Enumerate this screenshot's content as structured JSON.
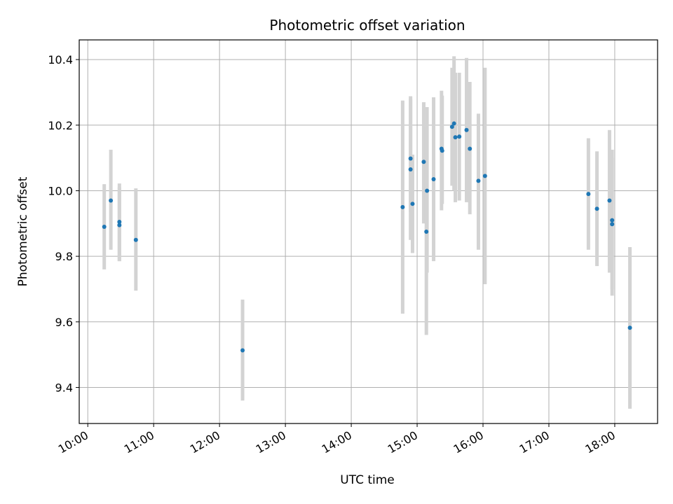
{
  "chart_data": {
    "type": "scatter",
    "title": "Photometric offset variation",
    "xlabel": "UTC time",
    "ylabel": "Photometric offset",
    "x_unit": "hour",
    "xlim": [
      9.87,
      18.65
    ],
    "ylim": [
      9.29,
      10.46
    ],
    "x_ticks": [
      10,
      11,
      12,
      13,
      14,
      15,
      16,
      17,
      18
    ],
    "x_tick_labels": [
      "10:00",
      "11:00",
      "12:00",
      "13:00",
      "14:00",
      "15:00",
      "16:00",
      "17:00",
      "18:00"
    ],
    "y_ticks": [
      9.4,
      9.6,
      9.8,
      10.0,
      10.2,
      10.4
    ],
    "y_tick_labels": [
      "9.4",
      "9.6",
      "9.8",
      "10.0",
      "10.2",
      "10.4"
    ],
    "grid": true,
    "marker_color": "#1f77b4",
    "errorbar_color": "#d3d3d3",
    "points": [
      {
        "x": 10.25,
        "y": 9.89,
        "lo": 9.76,
        "hi": 10.02
      },
      {
        "x": 10.35,
        "y": 9.97,
        "lo": 9.82,
        "hi": 10.125
      },
      {
        "x": 10.48,
        "y": 9.905,
        "lo": 9.785,
        "hi": 10.022
      },
      {
        "x": 10.48,
        "y": 9.895,
        "lo": 9.785,
        "hi": 10.01
      },
      {
        "x": 10.73,
        "y": 9.85,
        "lo": 9.695,
        "hi": 10.007
      },
      {
        "x": 12.35,
        "y": 9.513,
        "lo": 9.36,
        "hi": 9.668
      },
      {
        "x": 14.78,
        "y": 9.95,
        "lo": 9.625,
        "hi": 10.275
      },
      {
        "x": 14.9,
        "y": 10.098,
        "lo": 9.935,
        "hi": 10.288
      },
      {
        "x": 14.9,
        "y": 10.065,
        "lo": 9.85,
        "hi": 10.28
      },
      {
        "x": 14.93,
        "y": 9.96,
        "lo": 9.81,
        "hi": 10.11
      },
      {
        "x": 15.1,
        "y": 10.088,
        "lo": 9.9,
        "hi": 10.27
      },
      {
        "x": 15.14,
        "y": 9.875,
        "lo": 9.56,
        "hi": 10.195
      },
      {
        "x": 15.15,
        "y": 10.0,
        "lo": 9.75,
        "hi": 10.255
      },
      {
        "x": 15.25,
        "y": 10.035,
        "lo": 9.785,
        "hi": 10.285
      },
      {
        "x": 15.37,
        "y": 10.128,
        "lo": 9.94,
        "hi": 10.305
      },
      {
        "x": 15.38,
        "y": 10.122,
        "lo": 9.96,
        "hi": 10.29
      },
      {
        "x": 15.53,
        "y": 10.195,
        "lo": 10.015,
        "hi": 10.375
      },
      {
        "x": 15.56,
        "y": 10.205,
        "lo": 10.0,
        "hi": 10.41
      },
      {
        "x": 15.58,
        "y": 10.163,
        "lo": 9.965,
        "hi": 10.36
      },
      {
        "x": 15.64,
        "y": 10.165,
        "lo": 9.97,
        "hi": 10.36
      },
      {
        "x": 15.75,
        "y": 10.185,
        "lo": 9.965,
        "hi": 10.405
      },
      {
        "x": 15.8,
        "y": 10.128,
        "lo": 9.928,
        "hi": 10.332
      },
      {
        "x": 15.93,
        "y": 10.03,
        "lo": 9.82,
        "hi": 10.235
      },
      {
        "x": 16.03,
        "y": 10.045,
        "lo": 9.715,
        "hi": 10.375
      },
      {
        "x": 17.6,
        "y": 9.99,
        "lo": 9.82,
        "hi": 10.16
      },
      {
        "x": 17.73,
        "y": 9.945,
        "lo": 9.77,
        "hi": 10.12
      },
      {
        "x": 17.92,
        "y": 9.97,
        "lo": 9.75,
        "hi": 10.185
      },
      {
        "x": 17.96,
        "y": 9.91,
        "lo": 9.68,
        "hi": 10.125
      },
      {
        "x": 17.96,
        "y": 9.898,
        "lo": 9.7,
        "hi": 10.1
      },
      {
        "x": 18.23,
        "y": 9.582,
        "lo": 9.335,
        "hi": 9.828
      }
    ]
  }
}
